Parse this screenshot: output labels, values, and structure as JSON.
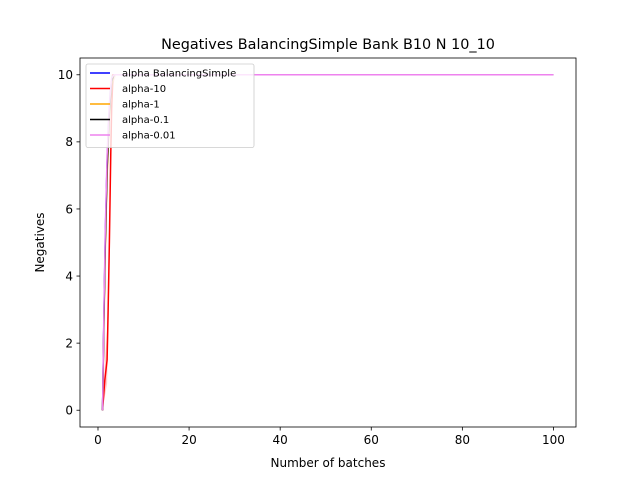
{
  "chart_data": {
    "type": "line",
    "title": "Negatives BalancingSimple Bank B10 N 10_10",
    "xlabel": "Number of batches",
    "ylabel": "Negatives",
    "xlim": [
      -3.95,
      104.95
    ],
    "ylim": [
      -0.5,
      10.5
    ],
    "xticks": [
      0,
      20,
      40,
      60,
      80,
      100
    ],
    "yticks": [
      0,
      2,
      4,
      6,
      8,
      10
    ],
    "grid": false,
    "legend_position": "top-left",
    "series": [
      {
        "name": "alpha BalancingSimple",
        "color": "#0000ff",
        "band": true,
        "x": [
          1,
          1.3,
          1.6,
          2,
          2.5,
          3,
          3.5,
          4,
          5,
          100
        ],
        "y": [
          0,
          2.8,
          5.2,
          7.4,
          9.0,
          9.8,
          10,
          10,
          10,
          10
        ],
        "lower": [
          0,
          2.0,
          4.3,
          6.7,
          8.5,
          9.6,
          10,
          10,
          10,
          10
        ],
        "upper": [
          0,
          3.5,
          6.0,
          8.2,
          9.5,
          10,
          10,
          10,
          10,
          10
        ]
      },
      {
        "name": "alpha-10",
        "color": "#ff0000",
        "band": true,
        "x": [
          1,
          1.5,
          2,
          2.2,
          2.5,
          2.8,
          3,
          3.3,
          4,
          5,
          100
        ],
        "y": [
          0,
          0.9,
          1.5,
          2.8,
          5.0,
          7.6,
          9.0,
          10,
          10,
          10,
          10
        ],
        "lower": [
          0,
          0.4,
          0.8,
          2.0,
          4.0,
          6.8,
          8.4,
          9.7,
          10,
          10,
          10
        ],
        "upper": [
          0,
          1.4,
          2.4,
          3.6,
          6.0,
          8.4,
          9.6,
          10,
          10,
          10,
          10
        ]
      },
      {
        "name": "alpha-1",
        "color": "#ffa500",
        "band": true,
        "x": [
          1,
          1.3,
          1.6,
          2,
          2.5,
          3,
          3.5,
          4,
          5,
          100
        ],
        "y": [
          0,
          2.5,
          4.8,
          7.0,
          8.8,
          9.7,
          10,
          10,
          10,
          10
        ],
        "lower": [
          0,
          1.8,
          4.0,
          6.3,
          8.3,
          9.5,
          10,
          10,
          10,
          10
        ],
        "upper": [
          0,
          3.2,
          5.6,
          7.8,
          9.3,
          10,
          10,
          10,
          10,
          10
        ]
      },
      {
        "name": "alpha-0.1",
        "color": "#000000",
        "band": true,
        "x": [
          1,
          1.3,
          1.6,
          2,
          2.5,
          3,
          3.5,
          4,
          5,
          100
        ],
        "y": [
          0,
          2.7,
          5.0,
          7.2,
          8.9,
          9.8,
          10,
          10,
          10,
          10
        ],
        "lower": [
          0,
          1.9,
          4.2,
          6.5,
          8.4,
          9.6,
          10,
          10,
          10,
          10
        ],
        "upper": [
          0,
          3.4,
          5.8,
          8.0,
          9.4,
          10,
          10,
          10,
          10,
          10
        ]
      },
      {
        "name": "alpha-0.01",
        "color": "#ee82ee",
        "band": true,
        "x": [
          1,
          1.3,
          1.6,
          2,
          2.5,
          3,
          3.5,
          4,
          5,
          100
        ],
        "y": [
          0,
          3.0,
          5.4,
          7.6,
          9.1,
          9.9,
          10,
          10,
          10,
          10
        ],
        "lower": [
          0,
          2.2,
          4.6,
          6.9,
          8.6,
          9.7,
          10,
          10,
          10,
          10
        ],
        "upper": [
          0,
          3.7,
          6.2,
          8.3,
          9.6,
          10,
          10,
          10,
          10,
          10
        ]
      }
    ]
  }
}
